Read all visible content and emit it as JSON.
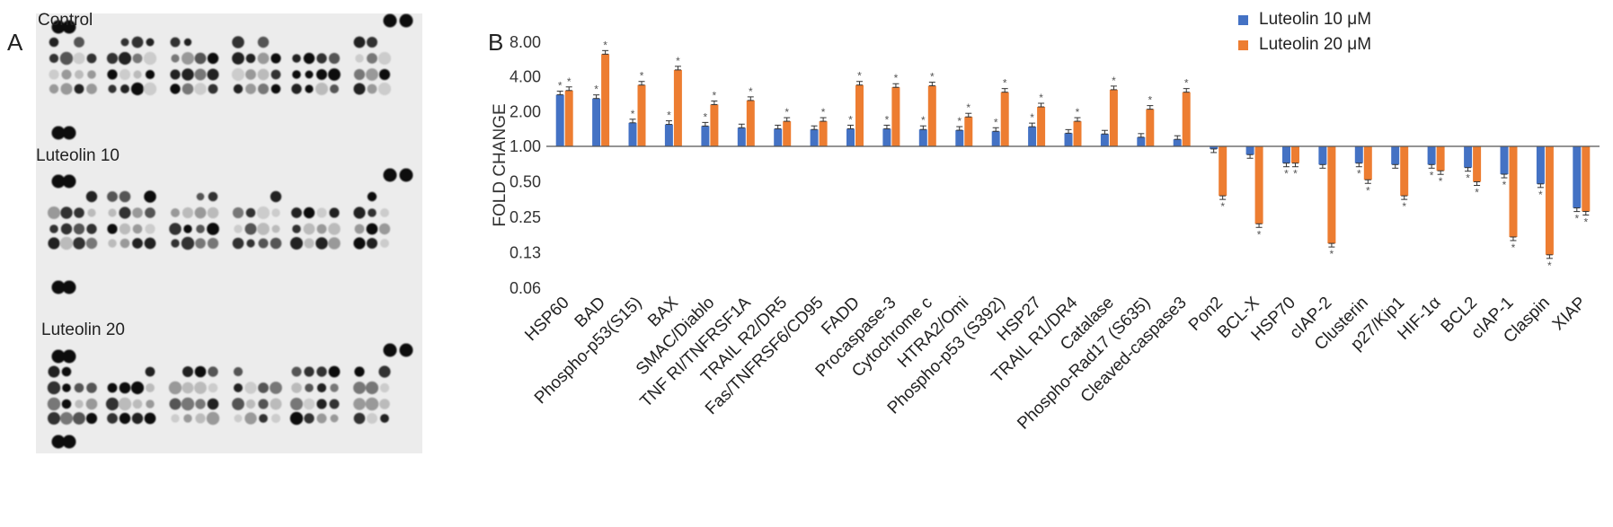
{
  "panel_a": {
    "letter": "A",
    "blots": [
      {
        "label": "Control"
      },
      {
        "label": "Luteolin 10"
      },
      {
        "label": "Luteolin 20"
      }
    ]
  },
  "panel_b": {
    "letter": "B"
  },
  "legend": [
    {
      "name": "Luteolin 10 μM",
      "color": "#4472c4"
    },
    {
      "name": "Luteolin 20 μM",
      "color": "#ed7d31"
    }
  ],
  "chart_data": {
    "type": "bar",
    "title": "",
    "xlabel": "",
    "ylabel": "FOLD CHANGE",
    "yscale": "log2",
    "ylim": [
      0.06,
      8.0
    ],
    "baseline": 1.0,
    "yticks": [
      "8.00",
      "4.00",
      "2.00",
      "1.00",
      "0.50",
      "0.25",
      "0.13",
      "0.06"
    ],
    "annotation_symbol": "*",
    "categories": [
      "HSP60",
      "BAD",
      "Phospho-p53(S15)",
      "BAX",
      "SMAC/Diablo",
      "TNF RI/TNFRSF1A",
      "TRAIL R2/DR5",
      "Fas/TNFRSF6/CD95",
      "FADD",
      "Procaspase-3",
      "Cytochrome c",
      "HTRA2/Omi",
      "Phospho-p53 (S392)",
      "HSP27",
      "TRAIL R1/DR4",
      "Catalase",
      "Phospho-Rad17 (S635)",
      "Cleaved-caspase3",
      "Pon2",
      "BCL-X",
      "HSP70",
      "cIAP-2",
      "Clusterin",
      "p27/Kip1",
      "HIF-1α",
      "BCL2",
      "cIAP-1",
      "Claspin",
      "XIAP"
    ],
    "series": [
      {
        "name": "Luteolin 10 μM",
        "values": [
          2.8,
          2.6,
          1.6,
          1.55,
          1.5,
          1.45,
          1.42,
          1.4,
          1.42,
          1.42,
          1.4,
          1.38,
          1.35,
          1.48,
          1.3,
          1.28,
          1.2,
          1.15,
          0.95,
          0.85,
          0.72,
          0.7,
          0.72,
          0.7,
          0.7,
          0.66,
          0.58,
          0.48,
          0.3
        ],
        "significant": [
          true,
          true,
          true,
          true,
          true,
          false,
          false,
          false,
          true,
          true,
          true,
          true,
          true,
          true,
          false,
          false,
          false,
          false,
          false,
          false,
          true,
          false,
          true,
          false,
          true,
          true,
          true,
          true,
          true
        ]
      },
      {
        "name": "Luteolin 20 μM",
        "values": [
          3.05,
          6.3,
          3.4,
          4.6,
          2.3,
          2.5,
          1.65,
          1.65,
          3.4,
          3.25,
          3.35,
          1.8,
          2.95,
          2.2,
          1.65,
          3.1,
          2.1,
          2.95,
          0.38,
          0.22,
          0.72,
          0.15,
          0.52,
          0.38,
          0.62,
          0.5,
          0.17,
          0.12,
          0.28
        ],
        "significant": [
          true,
          true,
          true,
          true,
          true,
          true,
          true,
          true,
          true,
          true,
          true,
          true,
          true,
          true,
          true,
          true,
          true,
          true,
          true,
          true,
          true,
          true,
          true,
          true,
          true,
          true,
          true,
          true,
          true
        ]
      }
    ]
  }
}
